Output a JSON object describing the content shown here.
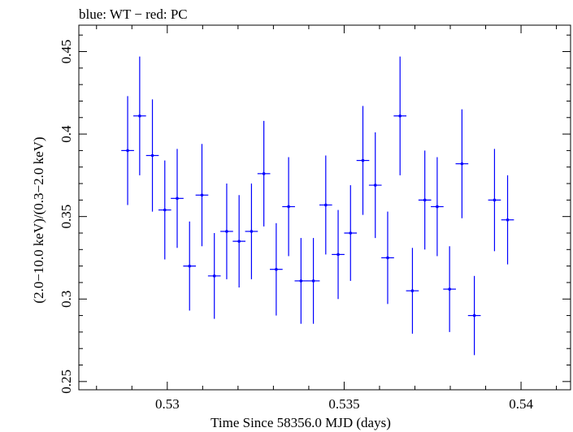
{
  "chart_data": {
    "type": "scatter",
    "title": "blue: WT − red: PC",
    "xlabel": "Time Since 58356.0 MJD (days)",
    "ylabel": "(2.0−10.0 keV)/(0.3−2.0 keV)",
    "xlim": [
      0.5275,
      0.5414
    ],
    "ylim": [
      0.245,
      0.466
    ],
    "x_ticks": [
      "0.53",
      "0.535",
      "0.54"
    ],
    "y_ticks": [
      "0.25",
      "0.3",
      "0.35",
      "0.4",
      "0.45"
    ],
    "grid": false,
    "series": [
      {
        "color": "#0000ff",
        "points": [
          {
            "x": 0.52888,
            "y": 0.39,
            "xerr": 0.00018,
            "yerr": 0.033
          },
          {
            "x": 0.52922,
            "y": 0.411,
            "xerr": 0.00018,
            "yerr": 0.036
          },
          {
            "x": 0.52958,
            "y": 0.387,
            "xerr": 0.00018,
            "yerr": 0.034
          },
          {
            "x": 0.52993,
            "y": 0.354,
            "xerr": 0.00018,
            "yerr": 0.03
          },
          {
            "x": 0.53028,
            "y": 0.361,
            "xerr": 0.00018,
            "yerr": 0.03
          },
          {
            "x": 0.53063,
            "y": 0.32,
            "xerr": 0.00018,
            "yerr": 0.027
          },
          {
            "x": 0.53098,
            "y": 0.363,
            "xerr": 0.00018,
            "yerr": 0.031
          },
          {
            "x": 0.53133,
            "y": 0.314,
            "xerr": 0.00018,
            "yerr": 0.026
          },
          {
            "x": 0.53168,
            "y": 0.341,
            "xerr": 0.00018,
            "yerr": 0.029
          },
          {
            "x": 0.53203,
            "y": 0.335,
            "xerr": 0.00018,
            "yerr": 0.028
          },
          {
            "x": 0.53238,
            "y": 0.341,
            "xerr": 0.00018,
            "yerr": 0.029
          },
          {
            "x": 0.53273,
            "y": 0.376,
            "xerr": 0.00018,
            "yerr": 0.032
          },
          {
            "x": 0.53308,
            "y": 0.318,
            "xerr": 0.00018,
            "yerr": 0.028
          },
          {
            "x": 0.53343,
            "y": 0.356,
            "xerr": 0.00018,
            "yerr": 0.03
          },
          {
            "x": 0.53378,
            "y": 0.311,
            "xerr": 0.00018,
            "yerr": 0.026
          },
          {
            "x": 0.53413,
            "y": 0.311,
            "xerr": 0.00018,
            "yerr": 0.026
          },
          {
            "x": 0.53448,
            "y": 0.357,
            "xerr": 0.00018,
            "yerr": 0.03
          },
          {
            "x": 0.53483,
            "y": 0.327,
            "xerr": 0.00018,
            "yerr": 0.027
          },
          {
            "x": 0.53518,
            "y": 0.34,
            "xerr": 0.00018,
            "yerr": 0.029
          },
          {
            "x": 0.53553,
            "y": 0.384,
            "xerr": 0.00018,
            "yerr": 0.033
          },
          {
            "x": 0.53588,
            "y": 0.369,
            "xerr": 0.00018,
            "yerr": 0.032
          },
          {
            "x": 0.53623,
            "y": 0.325,
            "xerr": 0.00018,
            "yerr": 0.028
          },
          {
            "x": 0.53658,
            "y": 0.411,
            "xerr": 0.00018,
            "yerr": 0.036
          },
          {
            "x": 0.53693,
            "y": 0.305,
            "xerr": 0.00018,
            "yerr": 0.026
          },
          {
            "x": 0.53728,
            "y": 0.36,
            "xerr": 0.00018,
            "yerr": 0.03
          },
          {
            "x": 0.53763,
            "y": 0.356,
            "xerr": 0.00018,
            "yerr": 0.03
          },
          {
            "x": 0.53798,
            "y": 0.306,
            "xerr": 0.00018,
            "yerr": 0.026
          },
          {
            "x": 0.53833,
            "y": 0.382,
            "xerr": 0.00018,
            "yerr": 0.033
          },
          {
            "x": 0.53868,
            "y": 0.29,
            "xerr": 0.00018,
            "yerr": 0.024
          },
          {
            "x": 0.53925,
            "y": 0.36,
            "xerr": 0.00018,
            "yerr": 0.031
          },
          {
            "x": 0.53962,
            "y": 0.348,
            "xerr": 0.00018,
            "yerr": 0.027
          }
        ]
      }
    ]
  }
}
